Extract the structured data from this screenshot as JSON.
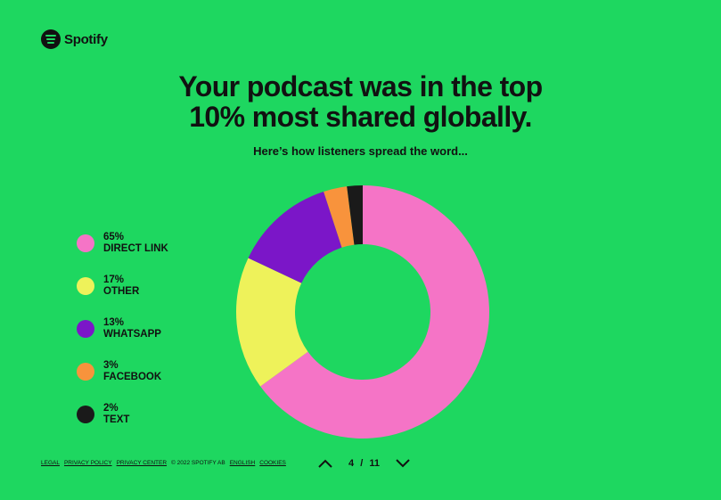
{
  "brand": {
    "name": "Spotify"
  },
  "header": {
    "title_line1": "Your podcast was in the top",
    "title_line2": "10% most shared globally.",
    "subtitle": "Here’s how listeners spread the word..."
  },
  "legend": [
    {
      "percent": "65%",
      "label": "DIRECT LINK",
      "color": "#f574c6"
    },
    {
      "percent": "17%",
      "label": "OTHER",
      "color": "#eef25a"
    },
    {
      "percent": "13%",
      "label": "WHATSAPP",
      "color": "#7b16c8"
    },
    {
      "percent": "3%",
      "label": "FACEBOOK",
      "color": "#f8933c"
    },
    {
      "percent": "2%",
      "label": "TEXT",
      "color": "#1a1a1a"
    }
  ],
  "footer": {
    "legal": "LEGAL",
    "privacy_policy": "PRIVACY POLICY",
    "privacy_center": "PRIVACY CENTER",
    "copyright": "© 2022 SPOTIFY AB",
    "english": "ENGLISH",
    "cookies": "COOKIES"
  },
  "pager": {
    "current": "4",
    "separator": "/",
    "total": "11"
  }
}
